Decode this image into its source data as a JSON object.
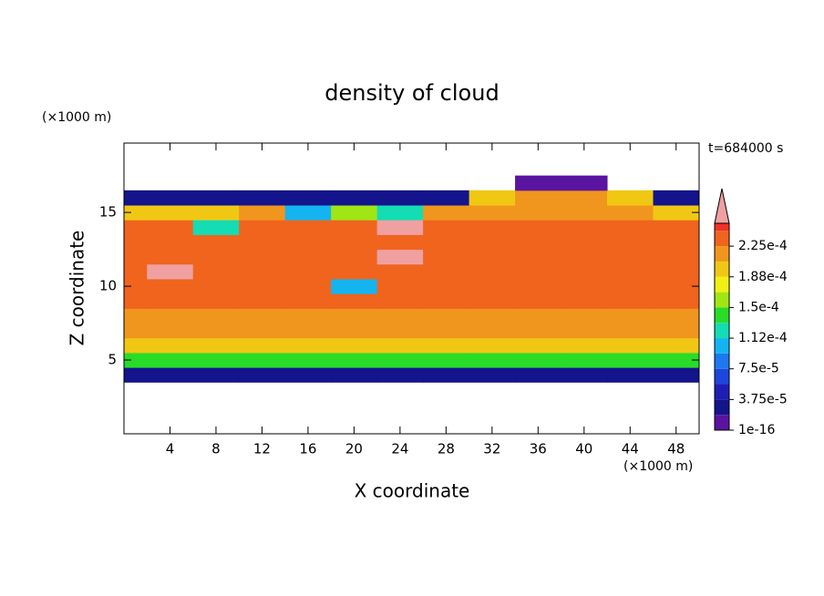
{
  "chart_data": {
    "type": "contour",
    "title": "density of cloud",
    "x_label": "X coordinate",
    "y_label": "Z coordinate",
    "x_unit": "(×1000 m)",
    "y_unit": "(×1000 m)",
    "time_label": "t=684000 s",
    "xlim": [
      0,
      50
    ],
    "ylim": [
      0,
      19.7
    ],
    "xticks": [
      4,
      8,
      12,
      16,
      20,
      24,
      28,
      32,
      36,
      40,
      44,
      48
    ],
    "yticks": [
      5,
      10,
      15
    ],
    "x": [
      0,
      4,
      8,
      12,
      16,
      20,
      24,
      28,
      32,
      36,
      40,
      44,
      48,
      50
    ],
    "z": [
      3,
      4,
      5,
      6,
      7,
      8,
      9,
      10,
      11,
      12,
      13,
      14,
      15,
      16,
      17
    ],
    "values": [
      [
        null,
        null,
        null,
        null,
        null,
        null,
        null,
        null,
        null,
        null,
        null,
        null,
        null,
        null
      ],
      [
        3e-05,
        3e-05,
        3e-05,
        3e-05,
        3e-05,
        3e-05,
        3e-05,
        3e-05,
        3e-05,
        3e-05,
        3e-05,
        3e-05,
        3e-05,
        3e-05
      ],
      [
        0.00014,
        0.00014,
        0.00014,
        0.00014,
        0.00014,
        0.00014,
        0.00014,
        0.00014,
        0.00014,
        0.00014,
        0.00014,
        0.00014,
        0.00014,
        0.00014
      ],
      [
        0.00019,
        0.00019,
        0.00019,
        0.00019,
        0.00019,
        0.00019,
        0.00019,
        0.00019,
        0.00019,
        0.00019,
        0.00019,
        0.00019,
        0.00019,
        0.00019
      ],
      [
        0.00021,
        0.00021,
        0.00021,
        0.00021,
        0.00021,
        0.00021,
        0.00021,
        0.00021,
        0.00021,
        0.00021,
        0.00021,
        0.00021,
        0.00021,
        0.00021
      ],
      [
        0.00022,
        0.00022,
        0.00022,
        0.00022,
        0.00022,
        0.00022,
        0.00022,
        0.00022,
        0.00022,
        0.00022,
        0.00022,
        0.00022,
        0.00022,
        0.00022
      ],
      [
        0.00023,
        0.00023,
        0.00023,
        0.00023,
        0.00023,
        0.00023,
        0.00023,
        0.00023,
        0.00023,
        0.00023,
        0.00023,
        0.00023,
        0.00023,
        0.00023
      ],
      [
        0.00023,
        0.00023,
        0.00023,
        0.00023,
        0.00023,
        0.00011,
        0.00023,
        0.00023,
        0.00023,
        0.00023,
        0.00023,
        0.00023,
        0.00023,
        0.00023
      ],
      [
        0.00023,
        0.00026,
        0.00023,
        0.00023,
        0.00023,
        0.00023,
        0.00023,
        0.00023,
        0.00023,
        0.00023,
        0.00023,
        0.00023,
        0.00023,
        0.00023
      ],
      [
        0.00023,
        0.00023,
        0.00023,
        0.00023,
        0.00023,
        0.00023,
        0.00026,
        0.00023,
        0.00023,
        0.00023,
        0.00023,
        0.00023,
        0.00023,
        0.00023
      ],
      [
        0.00023,
        0.00023,
        0.00023,
        0.00023,
        0.00023,
        0.00023,
        0.00023,
        0.00023,
        0.00023,
        0.00023,
        0.00023,
        0.00023,
        0.00023,
        0.00023
      ],
      [
        0.00023,
        0.00023,
        0.00013,
        0.00023,
        0.00023,
        0.00023,
        0.00026,
        0.00023,
        0.00023,
        0.00023,
        0.00023,
        0.00023,
        0.00023,
        0.00023
      ],
      [
        0.0002,
        0.00019,
        0.0002,
        0.00021,
        0.00011,
        0.00016,
        0.00012,
        0.00022,
        0.00022,
        0.00022,
        0.00022,
        0.00022,
        0.0002,
        0.0002
      ],
      [
        3e-05,
        3e-05,
        3e-05,
        3e-05,
        3e-05,
        3e-05,
        3e-05,
        3e-05,
        0.0002,
        0.00022,
        0.00022,
        0.00019,
        3e-05,
        3e-05
      ],
      [
        null,
        null,
        null,
        null,
        null,
        null,
        null,
        null,
        null,
        1e-05,
        1e-05,
        null,
        null,
        null
      ]
    ],
    "colorbar": {
      "clim": [
        1e-16,
        0.000253
      ],
      "levels": [
        1e-16,
        1.875e-05,
        3.75e-05,
        5.625e-05,
        7.5e-05,
        9.375e-05,
        0.0001125,
        0.00013125,
        0.00015,
        0.00016875,
        0.0001875,
        0.00020625,
        0.000225,
        0.00024375
      ],
      "colors": [
        "#5a14a0",
        "#14148c",
        "#1e1eb4",
        "#1e46dc",
        "#1e78f0",
        "#14b4f0",
        "#14dcb4",
        "#28dc28",
        "#a0e614",
        "#f0f014",
        "#f0c814",
        "#f0961e",
        "#f0641e",
        "#f03228"
      ],
      "extend_color": "#f0a0a0",
      "ticks": [
        {
          "value": 1e-16,
          "label": "1e-16"
        },
        {
          "value": 3.75e-05,
          "label": "3.75e-5"
        },
        {
          "value": 7.5e-05,
          "label": "7.5e-5"
        },
        {
          "value": 0.0001125,
          "label": "1.12e-4"
        },
        {
          "value": 0.00015,
          "label": "1.5e-4"
        },
        {
          "value": 0.0001875,
          "label": "1.88e-4"
        },
        {
          "value": 0.000225,
          "label": "2.25e-4"
        }
      ]
    }
  }
}
